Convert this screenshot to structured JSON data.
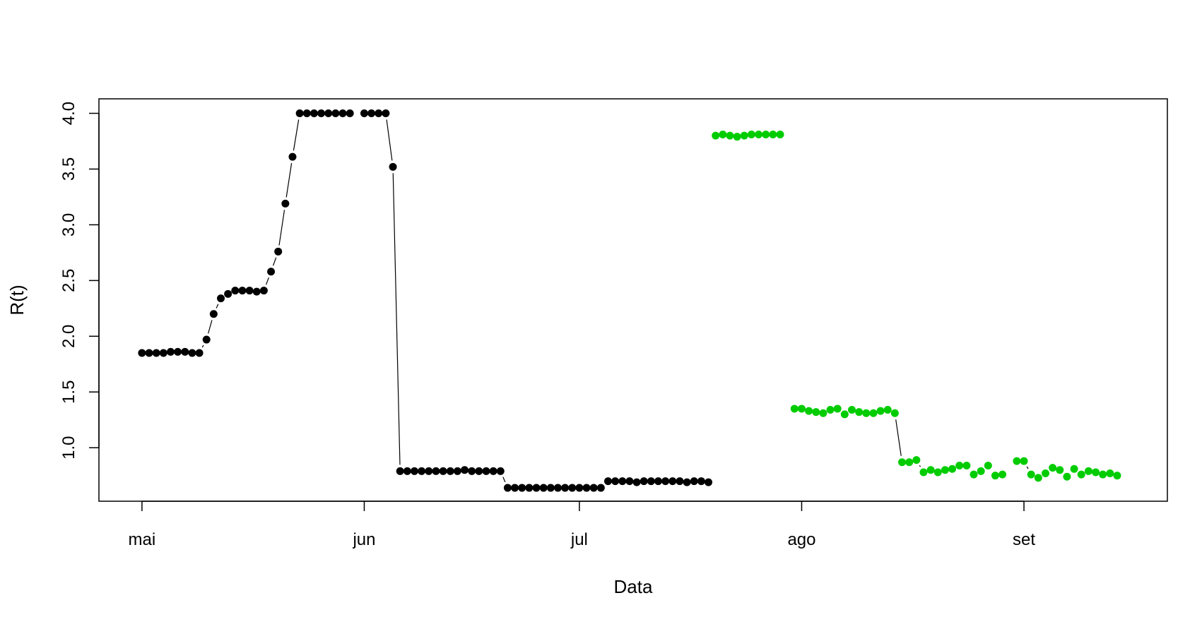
{
  "chart_data": {
    "type": "scatter",
    "xlabel": "Data",
    "ylabel": "R(t)",
    "x_ticks": [
      {
        "date": "2020-05-01",
        "label": "mai"
      },
      {
        "date": "2020-06-01",
        "label": "jun"
      },
      {
        "date": "2020-07-01",
        "label": "jul"
      },
      {
        "date": "2020-08-01",
        "label": "ago"
      },
      {
        "date": "2020-09-01",
        "label": "set"
      }
    ],
    "y_ticks": [
      "1.0",
      "1.5",
      "2.0",
      "2.5",
      "3.0",
      "3.5",
      "4.0"
    ],
    "xlim": [
      "2020-04-25",
      "2020-09-21"
    ],
    "ylim": [
      0.52,
      4.13
    ],
    "grid": false,
    "series": [
      {
        "color": "#000000",
        "line": true,
        "points": [
          [
            "2020-05-01",
            1.85
          ],
          [
            "2020-05-02",
            1.85
          ],
          [
            "2020-05-03",
            1.85
          ],
          [
            "2020-05-04",
            1.85
          ],
          [
            "2020-05-05",
            1.86
          ],
          [
            "2020-05-06",
            1.86
          ],
          [
            "2020-05-07",
            1.86
          ],
          [
            "2020-05-08",
            1.85
          ],
          [
            "2020-05-09",
            1.85
          ],
          [
            "2020-05-10",
            1.97
          ],
          [
            "2020-05-11",
            2.2
          ],
          [
            "2020-05-12",
            2.34
          ],
          [
            "2020-05-13",
            2.38
          ],
          [
            "2020-05-14",
            2.41
          ],
          [
            "2020-05-15",
            2.41
          ],
          [
            "2020-05-16",
            2.41
          ],
          [
            "2020-05-17",
            2.4
          ],
          [
            "2020-05-18",
            2.41
          ],
          [
            "2020-05-19",
            2.58
          ],
          [
            "2020-05-20",
            2.76
          ],
          [
            "2020-05-21",
            3.19
          ],
          [
            "2020-05-22",
            3.61
          ],
          [
            "2020-05-23",
            4.0
          ],
          [
            "2020-05-24",
            4.0
          ],
          [
            "2020-05-25",
            4.0
          ],
          [
            "2020-05-26",
            4.0
          ],
          [
            "2020-05-27",
            4.0
          ],
          [
            "2020-05-28",
            4.0
          ],
          [
            "2020-05-29",
            4.0
          ],
          [
            "2020-05-30",
            4.0
          ],
          [
            "2020-06-01",
            4.0
          ],
          [
            "2020-06-02",
            4.0
          ],
          [
            "2020-06-03",
            4.0
          ],
          [
            "2020-06-04",
            4.0
          ],
          [
            "2020-06-05",
            3.52
          ],
          [
            "2020-06-06",
            0.79
          ],
          [
            "2020-06-07",
            0.79
          ],
          [
            "2020-06-08",
            0.79
          ],
          [
            "2020-06-09",
            0.79
          ],
          [
            "2020-06-10",
            0.79
          ],
          [
            "2020-06-11",
            0.79
          ],
          [
            "2020-06-12",
            0.79
          ],
          [
            "2020-06-13",
            0.79
          ],
          [
            "2020-06-14",
            0.79
          ],
          [
            "2020-06-15",
            0.8
          ],
          [
            "2020-06-16",
            0.79
          ],
          [
            "2020-06-17",
            0.79
          ],
          [
            "2020-06-18",
            0.79
          ],
          [
            "2020-06-19",
            0.79
          ],
          [
            "2020-06-20",
            0.79
          ],
          [
            "2020-06-21",
            0.64
          ],
          [
            "2020-06-22",
            0.64
          ],
          [
            "2020-06-23",
            0.64
          ],
          [
            "2020-06-24",
            0.64
          ],
          [
            "2020-06-25",
            0.64
          ],
          [
            "2020-06-26",
            0.64
          ],
          [
            "2020-06-27",
            0.64
          ],
          [
            "2020-06-28",
            0.64
          ],
          [
            "2020-06-29",
            0.64
          ],
          [
            "2020-06-30",
            0.64
          ],
          [
            "2020-07-01",
            0.64
          ],
          [
            "2020-07-02",
            0.64
          ],
          [
            "2020-07-03",
            0.64
          ],
          [
            "2020-07-04",
            0.64
          ],
          [
            "2020-07-05",
            0.7
          ],
          [
            "2020-07-06",
            0.7
          ],
          [
            "2020-07-07",
            0.7
          ],
          [
            "2020-07-08",
            0.7
          ],
          [
            "2020-07-09",
            0.69
          ],
          [
            "2020-07-10",
            0.7
          ],
          [
            "2020-07-11",
            0.7
          ],
          [
            "2020-07-12",
            0.7
          ],
          [
            "2020-07-13",
            0.7
          ],
          [
            "2020-07-14",
            0.7
          ],
          [
            "2020-07-15",
            0.7
          ],
          [
            "2020-07-16",
            0.69
          ],
          [
            "2020-07-17",
            0.7
          ],
          [
            "2020-07-18",
            0.7
          ],
          [
            "2020-07-19",
            0.69
          ]
        ]
      },
      {
        "color": "#00cc00",
        "line": true,
        "points": [
          [
            "2020-07-20",
            3.8
          ],
          [
            "2020-07-21",
            3.81
          ],
          [
            "2020-07-22",
            3.8
          ],
          [
            "2020-07-23",
            3.79
          ],
          [
            "2020-07-24",
            3.8
          ],
          [
            "2020-07-25",
            3.81
          ],
          [
            "2020-07-26",
            3.81
          ],
          [
            "2020-07-27",
            3.81
          ],
          [
            "2020-07-28",
            3.81
          ],
          [
            "2020-07-29",
            3.81
          ],
          [
            "2020-07-31",
            1.35
          ],
          [
            "2020-08-01",
            1.35
          ],
          [
            "2020-08-02",
            1.33
          ],
          [
            "2020-08-03",
            1.32
          ],
          [
            "2020-08-04",
            1.31
          ],
          [
            "2020-08-05",
            1.34
          ],
          [
            "2020-08-06",
            1.35
          ],
          [
            "2020-08-07",
            1.3
          ],
          [
            "2020-08-08",
            1.34
          ],
          [
            "2020-08-09",
            1.32
          ],
          [
            "2020-08-10",
            1.31
          ],
          [
            "2020-08-11",
            1.31
          ],
          [
            "2020-08-12",
            1.33
          ],
          [
            "2020-08-13",
            1.34
          ],
          [
            "2020-08-14",
            1.31
          ],
          [
            "2020-08-15",
            0.87
          ],
          [
            "2020-08-16",
            0.87
          ],
          [
            "2020-08-17",
            0.89
          ],
          [
            "2020-08-18",
            0.78
          ],
          [
            "2020-08-19",
            0.8
          ],
          [
            "2020-08-20",
            0.78
          ],
          [
            "2020-08-21",
            0.8
          ],
          [
            "2020-08-22",
            0.81
          ],
          [
            "2020-08-23",
            0.84
          ],
          [
            "2020-08-24",
            0.84
          ],
          [
            "2020-08-25",
            0.76
          ],
          [
            "2020-08-26",
            0.79
          ],
          [
            "2020-08-27",
            0.84
          ],
          [
            "2020-08-28",
            0.75
          ],
          [
            "2020-08-29",
            0.76
          ],
          [
            "2020-08-31",
            0.88
          ],
          [
            "2020-09-01",
            0.88
          ],
          [
            "2020-09-02",
            0.76
          ],
          [
            "2020-09-03",
            0.73
          ],
          [
            "2020-09-04",
            0.77
          ],
          [
            "2020-09-05",
            0.82
          ],
          [
            "2020-09-06",
            0.8
          ],
          [
            "2020-09-07",
            0.74
          ],
          [
            "2020-09-08",
            0.81
          ],
          [
            "2020-09-09",
            0.76
          ],
          [
            "2020-09-10",
            0.79
          ],
          [
            "2020-09-11",
            0.78
          ],
          [
            "2020-09-12",
            0.76
          ],
          [
            "2020-09-13",
            0.77
          ],
          [
            "2020-09-14",
            0.75
          ]
        ]
      }
    ]
  }
}
